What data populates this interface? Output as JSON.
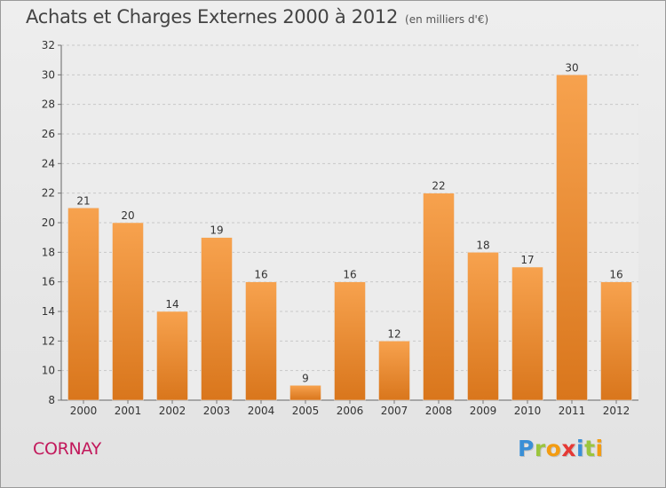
{
  "title": "Achats et Charges Externes 2000 à 2012",
  "subtitle": "(en milliers d'€)",
  "place": "CORNAY",
  "brand": {
    "letters": [
      "P",
      "r",
      "o",
      "x",
      "i",
      "t",
      "i"
    ],
    "colors": [
      "#3a8fd6",
      "#9bc53d",
      "#f39c12",
      "#e53935",
      "#3a8fd6",
      "#9bc53d",
      "#f39c12"
    ]
  },
  "colors": {
    "bar_light": "#f7a24e",
    "bar_dark": "#d9761c",
    "place": "#c2185b"
  },
  "chart_data": {
    "type": "bar",
    "categories": [
      "2000",
      "2001",
      "2002",
      "2003",
      "2004",
      "2005",
      "2006",
      "2007",
      "2008",
      "2009",
      "2010",
      "2011",
      "2012"
    ],
    "values": [
      21,
      20,
      14,
      19,
      16,
      9,
      16,
      12,
      22,
      18,
      17,
      30,
      16
    ],
    "ylim": [
      8,
      32
    ],
    "yticks": [
      8,
      10,
      12,
      14,
      16,
      18,
      20,
      22,
      24,
      26,
      28,
      30,
      32
    ],
    "grid": "horizontal-dashed",
    "data_labels": true
  }
}
